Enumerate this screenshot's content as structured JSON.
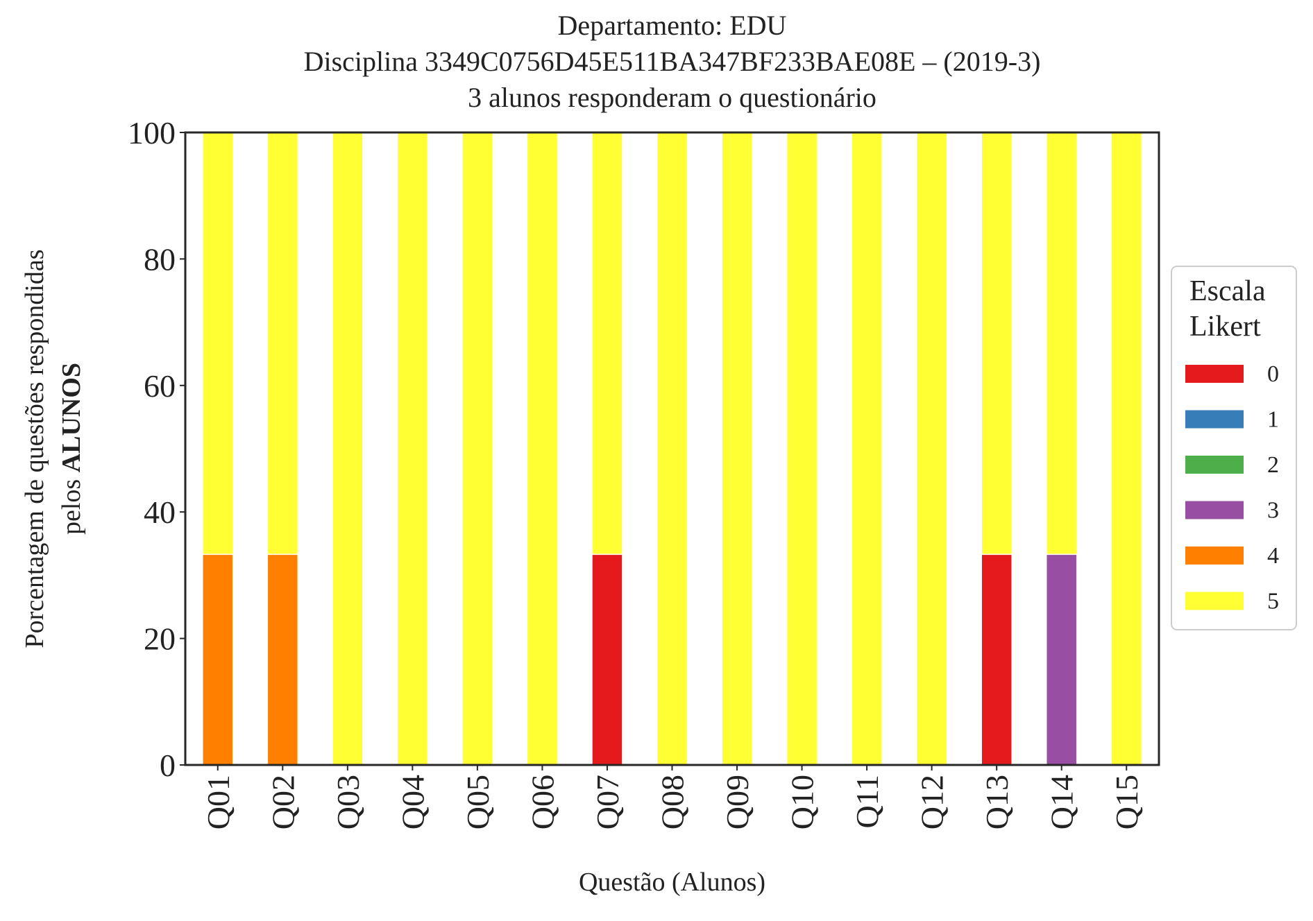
{
  "chart_data": {
    "type": "bar",
    "stacked": true,
    "title_lines": [
      "Departamento: EDU",
      "Disciplina 3349C0756D45E511BA347BF233BAE08E – (2019-3)",
      "3 alunos responderam o questionário"
    ],
    "xlabel": "Questão (Alunos)",
    "ylabel_line1": "Porcentagem de questões respondidas",
    "ylabel_line2_prefix": "pelos ",
    "ylabel_line2_bold": "ALUNOS",
    "ylim": [
      0,
      100
    ],
    "yticks": [
      "0",
      "20",
      "40",
      "60",
      "80",
      "100"
    ],
    "grid": false,
    "legend_position": "right",
    "legend_title_lines": [
      "Escala",
      "Likert"
    ],
    "categories": [
      "Q01",
      "Q02",
      "Q03",
      "Q04",
      "Q05",
      "Q06",
      "Q07",
      "Q08",
      "Q09",
      "Q10",
      "Q11",
      "Q12",
      "Q13",
      "Q14",
      "Q15"
    ],
    "series": [
      {
        "name": "0",
        "color": "#e41a1c",
        "values": [
          0,
          0,
          0,
          0,
          0,
          0,
          33.3,
          0,
          0,
          0,
          0,
          0,
          33.3,
          0,
          0
        ]
      },
      {
        "name": "1",
        "color": "#377eb8",
        "values": [
          0,
          0,
          0,
          0,
          0,
          0,
          0,
          0,
          0,
          0,
          0,
          0,
          0,
          0,
          0
        ]
      },
      {
        "name": "2",
        "color": "#4daf4a",
        "values": [
          0,
          0,
          0,
          0,
          0,
          0,
          0,
          0,
          0,
          0,
          0,
          0,
          0,
          0,
          0
        ]
      },
      {
        "name": "3",
        "color": "#984ea3",
        "values": [
          0,
          0,
          0,
          0,
          0,
          0,
          0,
          0,
          0,
          0,
          0,
          0,
          0,
          33.3,
          0
        ]
      },
      {
        "name": "4",
        "color": "#ff7f00",
        "values": [
          33.3,
          33.3,
          0,
          0,
          0,
          0,
          0,
          0,
          0,
          0,
          0,
          0,
          0,
          0,
          0
        ]
      },
      {
        "name": "5",
        "color": "#ffff33",
        "values": [
          66.7,
          66.7,
          100,
          100,
          100,
          100,
          66.7,
          100,
          100,
          100,
          100,
          100,
          66.7,
          66.7,
          100
        ]
      }
    ]
  }
}
